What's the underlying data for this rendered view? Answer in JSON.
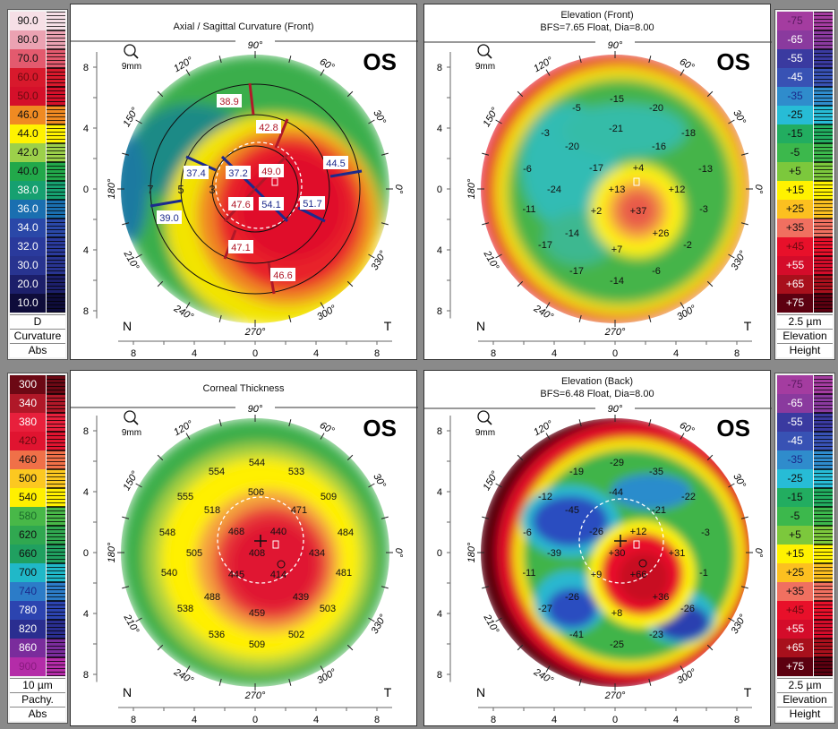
{
  "angle_labels": [
    "0°",
    "30°",
    "60°",
    "90°",
    "120°",
    "150°",
    "180°",
    "210°",
    "240°",
    "270°",
    "300°",
    "330°"
  ],
  "axis_ticks": [
    "8",
    "4",
    "0",
    "4",
    "8"
  ],
  "panels": {
    "curvature": {
      "title": "Axial / Sagittal Curvature (Front)",
      "subtitle": "",
      "eye": "OS",
      "zoom_label": "9mm",
      "nasal": "N",
      "temporal": "T",
      "ring_labels": [
        "3",
        "5",
        "7"
      ],
      "values": [
        {
          "value": "38.9",
          "color": "#b01828"
        },
        {
          "value": "42.8",
          "color": "#b01828"
        },
        {
          "value": "44.5",
          "color": "#1c2a8c"
        },
        {
          "value": "37.4",
          "color": "#1c2a8c"
        },
        {
          "value": "37.2",
          "color": "#1c2a8c"
        },
        {
          "value": "49.0",
          "color": "#b01828"
        },
        {
          "value": "47.6",
          "color": "#b01828"
        },
        {
          "value": "54.1",
          "color": "#1c2a8c"
        },
        {
          "value": "51.7",
          "color": "#1c2a8c"
        },
        {
          "value": "39.0",
          "color": "#1c2a8c"
        },
        {
          "value": "47.1",
          "color": "#b01828"
        },
        {
          "value": "46.6",
          "color": "#b01828"
        }
      ],
      "scale": {
        "unit": "D",
        "line1": "Curvature",
        "line2": "Abs",
        "steps": [
          {
            "label": "90.0",
            "color": "#f6dfe6",
            "text": "#111"
          },
          {
            "label": "80.0",
            "color": "#eba2b2",
            "text": "#111"
          },
          {
            "label": "70.0",
            "color": "#e35a6e",
            "text": "#111"
          },
          {
            "label": "60.0",
            "color": "#d8192c",
            "text": "#6a0a10"
          },
          {
            "label": "50.0",
            "color": "#d5102a",
            "text": "#6a0a10"
          },
          {
            "label": "46.0",
            "color": "#f08a22",
            "text": "#111"
          },
          {
            "label": "44.0",
            "color": "#fff200",
            "text": "#111"
          },
          {
            "label": "42.0",
            "color": "#9cd04a",
            "text": "#111"
          },
          {
            "label": "40.0",
            "color": "#22a84a",
            "text": "#111"
          },
          {
            "label": "38.0",
            "color": "#16a070",
            "text": "#fff"
          },
          {
            "label": "36.0",
            "color": "#1a6fb0",
            "text": "#fff"
          },
          {
            "label": "34.0",
            "color": "#2a48a8",
            "text": "#fff"
          },
          {
            "label": "32.0",
            "color": "#2a3a9c",
            "text": "#fff"
          },
          {
            "label": "30.0",
            "color": "#283490",
            "text": "#fff"
          },
          {
            "label": "20.0",
            "color": "#1c1f6a",
            "text": "#fff"
          },
          {
            "label": "10.0",
            "color": "#0e0c3a",
            "text": "#fff"
          }
        ]
      }
    },
    "elev_front": {
      "title": "Elevation (Front)",
      "subtitle": "BFS=7.65 Float, Dia=8.00",
      "eye": "OS",
      "zoom_label": "9mm",
      "nasal": "N",
      "temporal": "T",
      "values": [
        "-15",
        "-5",
        "-20",
        "-3",
        "-21",
        "-18",
        "-20",
        "-16",
        "-6",
        "-17",
        "+4",
        "-13",
        "-24",
        "+13",
        "+12",
        "-11",
        "+2",
        "+37",
        "-3",
        "-14",
        "+26",
        "-17",
        "+7",
        "-2",
        "-17",
        "-6",
        "-14"
      ],
      "scale": {
        "unit": "2.5 µm",
        "line1": "Elevation",
        "line2": "Height",
        "steps": [
          {
            "label": "-75",
            "color": "#a43ca0",
            "text": "#5a1a60"
          },
          {
            "label": "-65",
            "color": "#8a3a9e",
            "text": "#fff"
          },
          {
            "label": "-55",
            "color": "#3a3aa0",
            "text": "#fff"
          },
          {
            "label": "-45",
            "color": "#3852b4",
            "text": "#fff"
          },
          {
            "label": "-35",
            "color": "#2f8ccc",
            "text": "#1c2a8c"
          },
          {
            "label": "-25",
            "color": "#27bcd6",
            "text": "#111"
          },
          {
            "label": "-15",
            "color": "#22ad60",
            "text": "#111"
          },
          {
            "label": "-5",
            "color": "#3cb84c",
            "text": "#111"
          },
          {
            "label": "+5",
            "color": "#7cc83c",
            "text": "#111"
          },
          {
            "label": "+15",
            "color": "#fff200",
            "text": "#111"
          },
          {
            "label": "+25",
            "color": "#fcc020",
            "text": "#111"
          },
          {
            "label": "+35",
            "color": "#f07060",
            "text": "#111"
          },
          {
            "label": "+45",
            "color": "#e8102a",
            "text": "#6a0a10"
          },
          {
            "label": "+55",
            "color": "#d40c2a",
            "text": "#fff"
          },
          {
            "label": "+65",
            "color": "#a8101c",
            "text": "#fff"
          },
          {
            "label": "+75",
            "color": "#5c0010",
            "text": "#fff"
          }
        ]
      }
    },
    "thickness": {
      "title": "Corneal Thickness",
      "subtitle": "",
      "eye": "OS",
      "zoom_label": "9mm",
      "nasal": "N",
      "temporal": "T",
      "values": [
        "544",
        "554",
        "533",
        "555",
        "506",
        "509",
        "518",
        "471",
        "548",
        "468",
        "440",
        "484",
        "505",
        "408",
        "434",
        "540",
        "445",
        "414",
        "481",
        "488",
        "439",
        "538",
        "459",
        "503",
        "536",
        "502",
        "509"
      ],
      "scale": {
        "unit": "10 µm",
        "line1": "Pachy.",
        "line2": "Abs",
        "steps": [
          {
            "label": "300",
            "color": "#6c0814",
            "text": "#fff"
          },
          {
            "label": "340",
            "color": "#b01828",
            "text": "#fff"
          },
          {
            "label": "380",
            "color": "#e8203c",
            "text": "#fff"
          },
          {
            "label": "420",
            "color": "#e01430",
            "text": "#6a0a10"
          },
          {
            "label": "460",
            "color": "#f07048",
            "text": "#111"
          },
          {
            "label": "500",
            "color": "#fcc820",
            "text": "#111"
          },
          {
            "label": "540",
            "color": "#fff000",
            "text": "#111"
          },
          {
            "label": "580",
            "color": "#48b848",
            "text": "#1a6a2a"
          },
          {
            "label": "620",
            "color": "#30a850",
            "text": "#111"
          },
          {
            "label": "660",
            "color": "#20a060",
            "text": "#111"
          },
          {
            "label": "700",
            "color": "#20b8c8",
            "text": "#111"
          },
          {
            "label": "740",
            "color": "#2c7cc8",
            "text": "#1c2a8c"
          },
          {
            "label": "780",
            "color": "#2c44b0",
            "text": "#fff"
          },
          {
            "label": "820",
            "color": "#2a2e90",
            "text": "#fff"
          },
          {
            "label": "860",
            "color": "#7a2c9c",
            "text": "#fff"
          },
          {
            "label": "900",
            "color": "#b42ca8",
            "text": "#8a1a80"
          }
        ]
      }
    },
    "elev_back": {
      "title": "Elevation (Back)",
      "subtitle": "BFS=6.48 Float, Dia=8.00",
      "eye": "OS",
      "zoom_label": "9mm",
      "nasal": "N",
      "temporal": "T",
      "values": [
        "-29",
        "-19",
        "-35",
        "-12",
        "-44",
        "-22",
        "-45",
        "-21",
        "-6",
        "-26",
        "+12",
        "-3",
        "-39",
        "+30",
        "+31",
        "-11",
        "+9",
        "+66",
        "-1",
        "-26",
        "+36",
        "-27",
        "+8",
        "-26",
        "-41",
        "-23",
        "-25"
      ],
      "scale": {
        "unit": "2.5 µm",
        "line1": "Elevation",
        "line2": "Height",
        "steps": [
          {
            "label": "-75",
            "color": "#a43ca0",
            "text": "#5a1a60"
          },
          {
            "label": "-65",
            "color": "#8a3a9e",
            "text": "#fff"
          },
          {
            "label": "-55",
            "color": "#3a3aa0",
            "text": "#fff"
          },
          {
            "label": "-45",
            "color": "#3852b4",
            "text": "#fff"
          },
          {
            "label": "-35",
            "color": "#2f8ccc",
            "text": "#1c2a8c"
          },
          {
            "label": "-25",
            "color": "#27bcd6",
            "text": "#111"
          },
          {
            "label": "-15",
            "color": "#22ad60",
            "text": "#111"
          },
          {
            "label": "-5",
            "color": "#3cb84c",
            "text": "#111"
          },
          {
            "label": "+5",
            "color": "#7cc83c",
            "text": "#111"
          },
          {
            "label": "+15",
            "color": "#fff200",
            "text": "#111"
          },
          {
            "label": "+25",
            "color": "#fcc020",
            "text": "#111"
          },
          {
            "label": "+35",
            "color": "#f07060",
            "text": "#111"
          },
          {
            "label": "+45",
            "color": "#e8102a",
            "text": "#6a0a10"
          },
          {
            "label": "+55",
            "color": "#d40c2a",
            "text": "#fff"
          },
          {
            "label": "+65",
            "color": "#a8101c",
            "text": "#fff"
          },
          {
            "label": "+75",
            "color": "#5c0010",
            "text": "#fff"
          }
        ]
      }
    }
  }
}
